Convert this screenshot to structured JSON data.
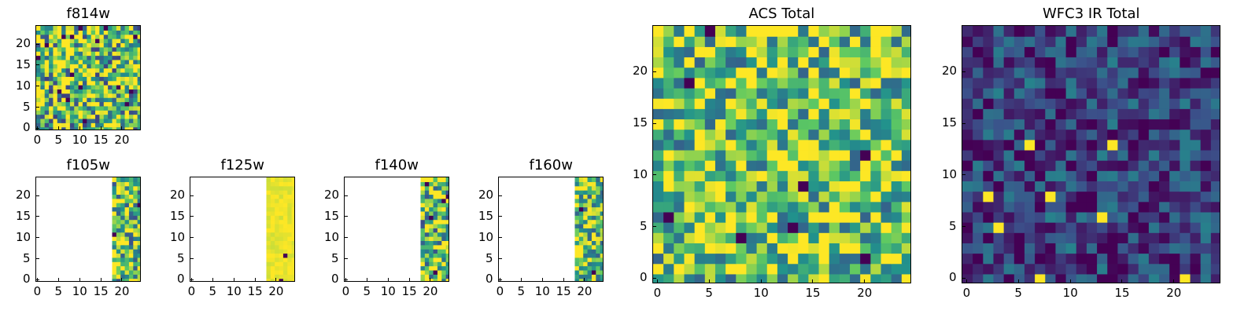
{
  "colormap": [
    "#440154",
    "#3b528b",
    "#21918c",
    "#5ec962",
    "#fde725"
  ],
  "chart_data": [
    {
      "type": "heatmap",
      "title": "f814w",
      "grid_size": 25,
      "xticks": [
        "0",
        "5",
        "10",
        "15",
        "20"
      ],
      "yticks": [
        "0",
        "5",
        "10",
        "15",
        "20"
      ],
      "valid_from_col": 0,
      "mean": 0.72,
      "spread": 0.55,
      "seed": 11
    },
    {
      "type": "heatmap",
      "title": "f105w",
      "grid_size": 25,
      "xticks": [
        "0",
        "5",
        "10",
        "15",
        "20"
      ],
      "yticks": [
        "0",
        "5",
        "10",
        "15",
        "20"
      ],
      "valid_from_col": 18,
      "mean": 0.72,
      "spread": 0.5,
      "seed": 23
    },
    {
      "type": "heatmap",
      "title": "f125w",
      "grid_size": 25,
      "xticks": [
        "0",
        "5",
        "10",
        "15",
        "20"
      ],
      "yticks": [
        "0",
        "5",
        "10",
        "15",
        "20"
      ],
      "valid_from_col": 18,
      "mean": 0.97,
      "spread": 0.05,
      "seed": 31
    },
    {
      "type": "heatmap",
      "title": "f140w",
      "grid_size": 25,
      "xticks": [
        "0",
        "5",
        "10",
        "15",
        "20"
      ],
      "yticks": [
        "0",
        "5",
        "10",
        "15",
        "20"
      ],
      "valid_from_col": 18,
      "mean": 0.7,
      "spread": 0.5,
      "seed": 41
    },
    {
      "type": "heatmap",
      "title": "f160w",
      "grid_size": 25,
      "xticks": [
        "0",
        "5",
        "10",
        "15",
        "20"
      ],
      "yticks": [
        "0",
        "5",
        "10",
        "15",
        "20"
      ],
      "valid_from_col": 18,
      "mean": 0.75,
      "spread": 0.45,
      "seed": 53
    },
    {
      "type": "heatmap",
      "title": "ACS Total",
      "grid_size": 25,
      "xticks": [
        "0",
        "5",
        "10",
        "15",
        "20"
      ],
      "yticks": [
        "0",
        "5",
        "10",
        "15",
        "20"
      ],
      "valid_from_col": 0,
      "mean": 0.72,
      "spread": 0.42,
      "seed": 67
    },
    {
      "type": "heatmap",
      "title": "WFC3 IR Total",
      "grid_size": 25,
      "xticks": [
        "0",
        "5",
        "10",
        "15",
        "20"
      ],
      "yticks": [
        "0",
        "5",
        "10",
        "15",
        "20"
      ],
      "valid_from_col": 0,
      "mean": 0.2,
      "spread": 0.25,
      "seed": 79
    }
  ]
}
